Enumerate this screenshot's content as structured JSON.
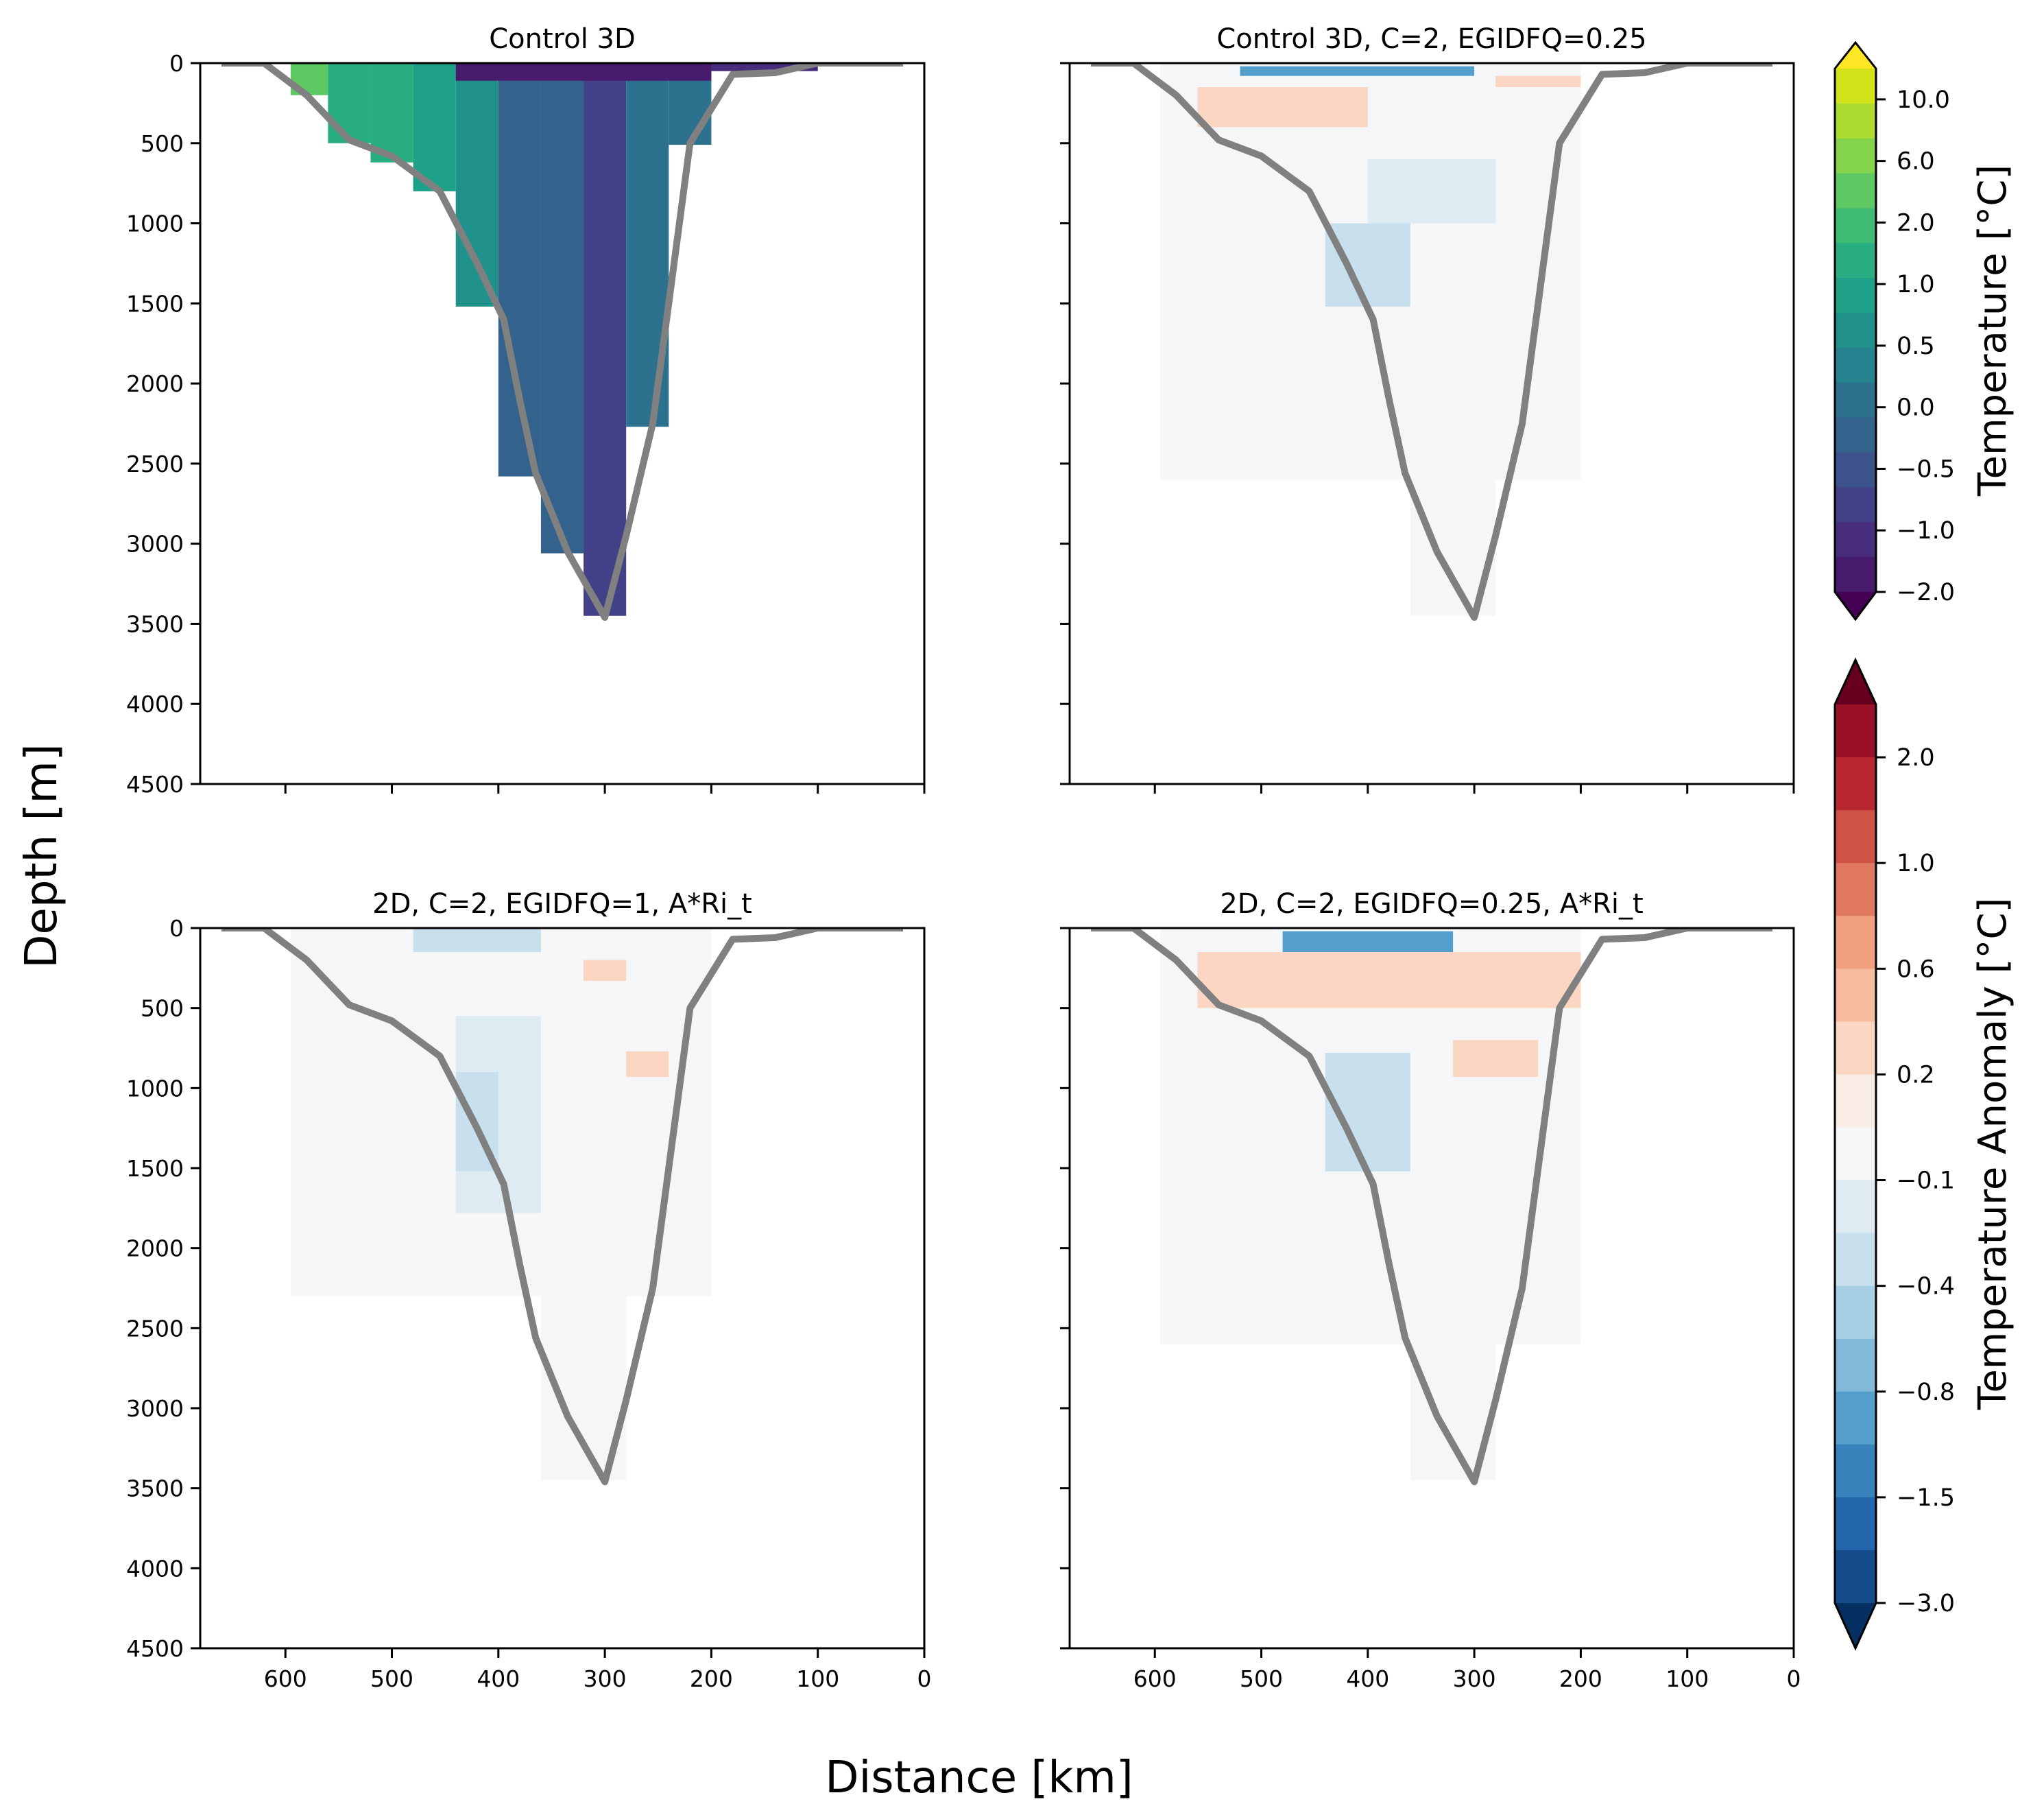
{
  "chart_data": {
    "type": "heatmap",
    "figure": {
      "xlabel": "Distance [km]",
      "ylabel": "Depth [m]"
    },
    "axes": {
      "xlim": [
        680,
        0
      ],
      "ylim": [
        4500,
        0
      ],
      "xticks": [
        600,
        500,
        400,
        300,
        200,
        100,
        0
      ],
      "xtick_labels": [
        "600",
        "500",
        "400",
        "300",
        "200",
        "100",
        "0"
      ],
      "yticks": [
        0,
        500,
        1000,
        1500,
        2000,
        2500,
        3000,
        3500,
        4000,
        4500
      ],
      "ytick_labels": [
        "0",
        "500",
        "1000",
        "1500",
        "2000",
        "2500",
        "3000",
        "3500",
        "4000",
        "4500"
      ],
      "grid": false
    },
    "bathymetry": {
      "color": "#808080",
      "x": [
        660,
        620,
        580,
        540,
        500,
        455,
        420,
        395,
        380,
        365,
        335,
        300,
        280,
        255,
        220,
        180,
        140,
        100,
        20
      ],
      "y": [
        0,
        0,
        200,
        480,
        580,
        800,
        1250,
        1600,
        2100,
        2560,
        3050,
        3460,
        2950,
        2250,
        500,
        70,
        60,
        0,
        0
      ]
    },
    "panels": [
      {
        "title": "Control 3D",
        "field": "temperature",
        "show_xticklabels": false,
        "show_yticklabels": true,
        "cells": [
          {
            "x0": 595,
            "x1": 560,
            "y0": 0,
            "y1": 200,
            "v": 1.5
          },
          {
            "x0": 560,
            "x1": 520,
            "y0": 0,
            "y1": 500,
            "v": 0.9
          },
          {
            "x0": 520,
            "x1": 480,
            "y0": 0,
            "y1": 620,
            "v": 0.75
          },
          {
            "x0": 480,
            "x1": 440,
            "y0": 0,
            "y1": 800,
            "v": 0.7
          },
          {
            "x0": 440,
            "x1": 400,
            "y0": 0,
            "y1": 1520,
            "v": 0.45
          },
          {
            "x0": 400,
            "x1": 360,
            "y0": 0,
            "y1": 2580,
            "v": -0.3
          },
          {
            "x0": 360,
            "x1": 320,
            "y0": 0,
            "y1": 3060,
            "v": -0.4
          },
          {
            "x0": 320,
            "x1": 280,
            "y0": 0,
            "y1": 3450,
            "v": -0.8
          },
          {
            "x0": 280,
            "x1": 240,
            "y0": 0,
            "y1": 2270,
            "v": -0.2
          },
          {
            "x0": 240,
            "x1": 200,
            "y0": 0,
            "y1": 510,
            "v": -0.1
          },
          {
            "x0": 440,
            "x1": 200,
            "y0": 0,
            "y1": 110,
            "v": -1.6
          },
          {
            "x0": 200,
            "x1": 100,
            "y0": 0,
            "y1": 50,
            "v": -1.5
          }
        ]
      },
      {
        "title": "Control 3D, C=2, EGIDFQ=0.25",
        "field": "anomaly",
        "show_xticklabels": false,
        "show_yticklabels": false,
        "cells": [
          {
            "x0": 595,
            "x1": 200,
            "y0": 0,
            "y1": 2600,
            "v": 0.0
          },
          {
            "x0": 360,
            "x1": 280,
            "y0": 2600,
            "y1": 3450,
            "v": 0.0
          },
          {
            "x0": 440,
            "x1": 360,
            "y0": 1000,
            "y1": 1520,
            "v": -0.3
          },
          {
            "x0": 400,
            "x1": 280,
            "y0": 600,
            "y1": 1000,
            "v": -0.2
          },
          {
            "x0": 560,
            "x1": 400,
            "y0": 150,
            "y1": 400,
            "v": 0.3
          },
          {
            "x0": 520,
            "x1": 300,
            "y0": 20,
            "y1": 80,
            "v": -1.0
          },
          {
            "x0": 280,
            "x1": 200,
            "y0": 80,
            "y1": 150,
            "v": 0.3
          }
        ]
      },
      {
        "title": "2D, C=2, EGIDFQ=1, A*Ri_t",
        "field": "anomaly",
        "show_xticklabels": true,
        "show_yticklabels": true,
        "cells": [
          {
            "x0": 595,
            "x1": 200,
            "y0": 0,
            "y1": 2300,
            "v": 0.0
          },
          {
            "x0": 360,
            "x1": 280,
            "y0": 2300,
            "y1": 3450,
            "v": 0.0
          },
          {
            "x0": 440,
            "x1": 360,
            "y0": 550,
            "y1": 1780,
            "v": -0.2
          },
          {
            "x0": 440,
            "x1": 400,
            "y0": 900,
            "y1": 1520,
            "v": -0.3
          },
          {
            "x0": 320,
            "x1": 280,
            "y0": 200,
            "y1": 330,
            "v": 0.2
          },
          {
            "x0": 280,
            "x1": 240,
            "y0": 770,
            "y1": 930,
            "v": 0.2
          },
          {
            "x0": 480,
            "x1": 360,
            "y0": 0,
            "y1": 150,
            "v": -0.3
          }
        ]
      },
      {
        "title": "2D, C=2, EGIDFQ=0.25, A*Ri_t",
        "field": "anomaly",
        "show_xticklabels": true,
        "show_yticklabels": false,
        "cells": [
          {
            "x0": 595,
            "x1": 200,
            "y0": 0,
            "y1": 2600,
            "v": 0.0
          },
          {
            "x0": 360,
            "x1": 280,
            "y0": 2600,
            "y1": 3450,
            "v": 0.0
          },
          {
            "x0": 440,
            "x1": 360,
            "y0": 780,
            "y1": 1520,
            "v": -0.3
          },
          {
            "x0": 560,
            "x1": 200,
            "y0": 150,
            "y1": 500,
            "v": 0.3
          },
          {
            "x0": 320,
            "x1": 240,
            "y0": 700,
            "y1": 930,
            "v": 0.3
          },
          {
            "x0": 480,
            "x1": 320,
            "y0": 20,
            "y1": 150,
            "v": -1.0
          }
        ]
      }
    ],
    "colorbars": [
      {
        "label": "Temperature [°C]",
        "extend": "both",
        "tick_values": [
          10.0,
          6.0,
          2.0,
          1.0,
          0.5,
          0.0,
          -0.5,
          -1.0,
          -2.0
        ],
        "tick_labels": [
          "10.0",
          "6.0",
          "2.0",
          "1.0",
          "0.5",
          "0.0",
          "−0.5",
          "−1.0",
          "−2.0"
        ],
        "colors_top_to_bottom": [
          "#fde725",
          "#d2e21b",
          "#addc30",
          "#84d44b",
          "#5ec962",
          "#3fbc73",
          "#28ae80",
          "#1fa088",
          "#21918c",
          "#26828e",
          "#2c728e",
          "#33638d",
          "#3b528b",
          "#424086",
          "#472d7b",
          "#481a6c",
          "#440154"
        ]
      },
      {
        "label": "Temperature Anomaly [°C]",
        "extend": "both",
        "tick_values": [
          2.0,
          1.0,
          0.6,
          0.2,
          -0.1,
          -0.4,
          -0.8,
          -1.5,
          -3.0
        ],
        "tick_labels": [
          "2.0",
          "1.0",
          "0.6",
          "0.2",
          "−0.1",
          "−0.4",
          "−0.8",
          "−1.5",
          "−3.0"
        ],
        "colors_top_to_bottom": [
          "#67001f",
          "#9a1027",
          "#b8282e",
          "#cf5246",
          "#e17860",
          "#f0a07e",
          "#f7bba0",
          "#fbd7c3",
          "#f8ece5",
          "#f4f6f8",
          "#deebf2",
          "#c8e0ed",
          "#a7cfe4",
          "#82b9d8",
          "#549fcb",
          "#3683bb",
          "#2367ac",
          "#154c8b",
          "#053061"
        ]
      }
    ]
  }
}
